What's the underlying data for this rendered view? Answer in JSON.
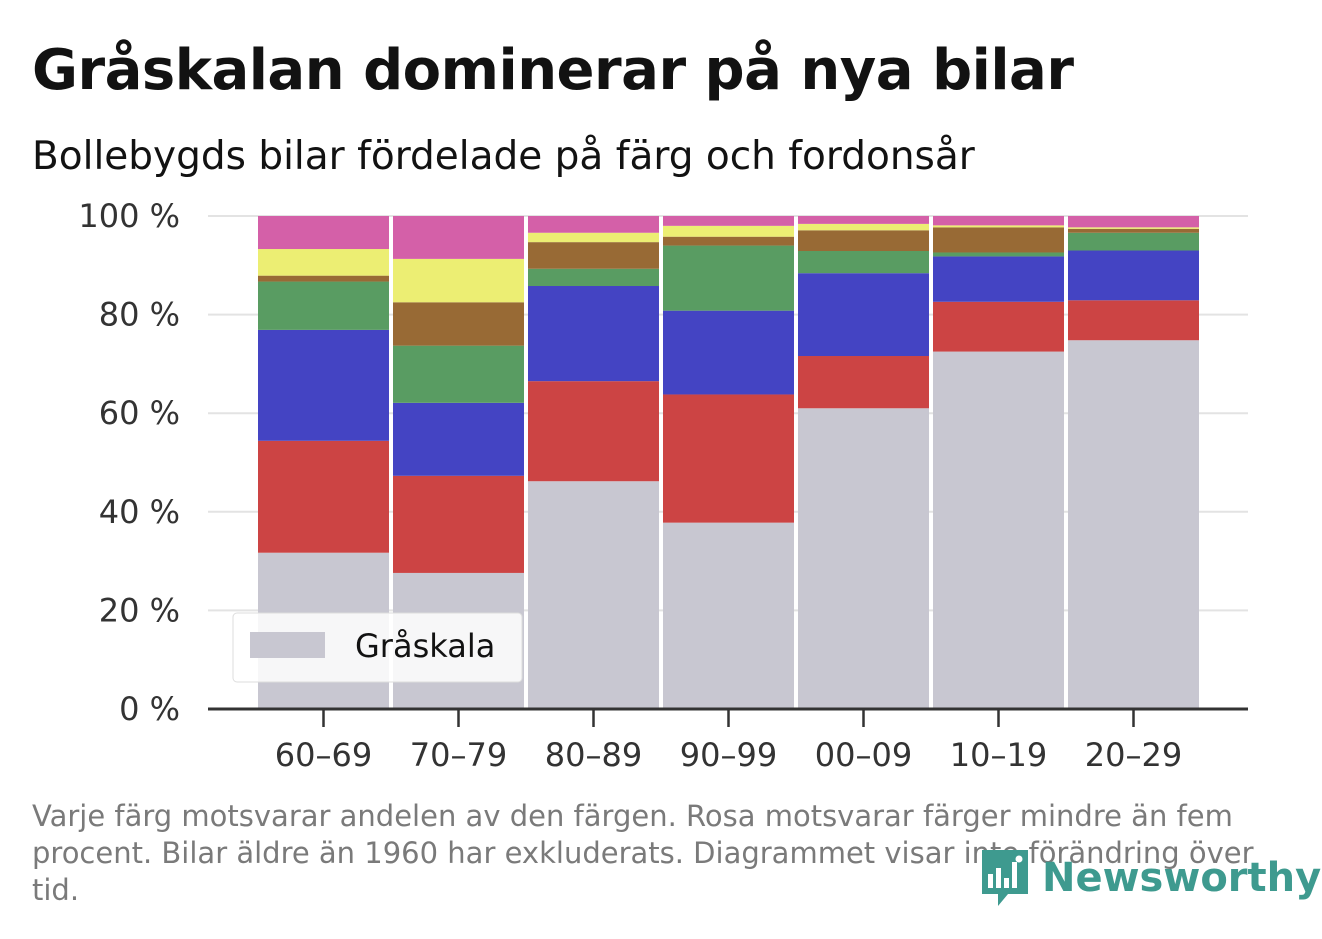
{
  "header": {
    "title": "Gråskalan dominerar på nya bilar",
    "subtitle": "Bollebygds bilar fördelade på färg och fordonsår"
  },
  "footer": {
    "note": "Varje färg motsvarar andelen av den färgen. Rosa motsvarar färger mindre än fem procent. Bilar äldre än 1960 har exkluderats. Diagrammet visar inte förändring över tid.",
    "brand": "Newsworthy",
    "brand_icon": "newsworthy-logo-icon",
    "brand_color": "#3e9a8f"
  },
  "chart_data": {
    "type": "bar",
    "stacked": true,
    "categories": [
      "60–69",
      "70–79",
      "80–89",
      "90–99",
      "00–09",
      "10–19",
      "20–29"
    ],
    "ylim": [
      0,
      100
    ],
    "yticks": [
      "0 %",
      "20 %",
      "40 %",
      "60 %",
      "80 %",
      "100 %"
    ],
    "grid": true,
    "legend": {
      "position": "bottom-left",
      "entries": [
        "Gråskala"
      ]
    },
    "series": [
      {
        "name": "Gråskala",
        "color": "#c8c7d1",
        "values": [
          31.7,
          27.6,
          46.2,
          37.8,
          61.0,
          72.5,
          74.8
        ]
      },
      {
        "color": "#cc4444",
        "values": [
          22.7,
          19.7,
          20.3,
          26.0,
          10.6,
          10.1,
          8.1
        ]
      },
      {
        "color": "#4444c3",
        "values": [
          22.5,
          14.8,
          19.3,
          17.0,
          16.8,
          9.2,
          10.1
        ]
      },
      {
        "color": "#599c62",
        "values": [
          9.8,
          11.6,
          3.5,
          13.2,
          4.5,
          0.8,
          3.6
        ]
      },
      {
        "color": "#986a35",
        "values": [
          1.2,
          8.8,
          5.4,
          1.8,
          4.2,
          5.1,
          0.8
        ]
      },
      {
        "color": "#ecee73",
        "values": [
          5.4,
          8.8,
          1.9,
          2.2,
          1.3,
          0.4,
          0.3
        ]
      },
      {
        "color": "#d460a8",
        "values": [
          6.7,
          8.7,
          3.4,
          2.0,
          1.6,
          1.9,
          2.3
        ]
      }
    ]
  }
}
